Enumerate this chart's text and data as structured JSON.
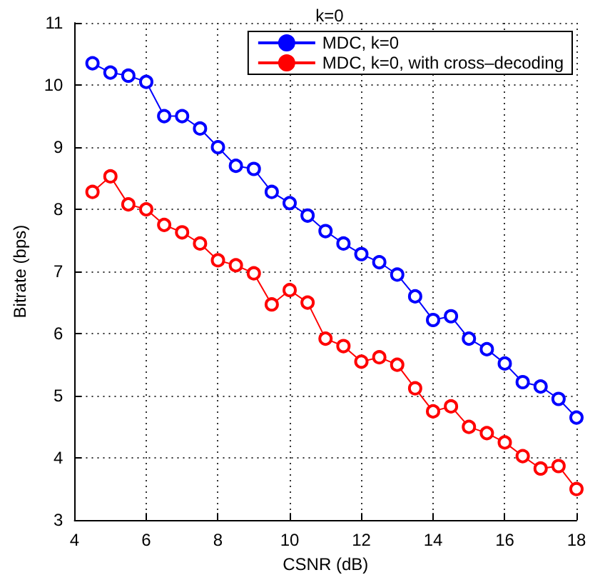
{
  "chart_data": {
    "type": "line",
    "title": "k=0",
    "xlabel": "CSNR (dB)",
    "ylabel": "Bitrate (bps)",
    "x": [
      4.5,
      5,
      5.5,
      6,
      6.5,
      7,
      7.5,
      8,
      8.5,
      9,
      9.5,
      10,
      10.5,
      11,
      11.5,
      12,
      12.5,
      13,
      13.5,
      14,
      14.5,
      15,
      15.5,
      16,
      16.5,
      17,
      17.5,
      18
    ],
    "series": [
      {
        "name": "MDC, k=0",
        "color": "#0000ff",
        "values": [
          10.35,
          10.2,
          10.15,
          10.05,
          9.5,
          9.5,
          9.3,
          9.0,
          8.7,
          8.65,
          8.28,
          8.1,
          7.9,
          7.65,
          7.45,
          7.28,
          7.15,
          6.95,
          6.6,
          6.22,
          6.28,
          5.92,
          5.75,
          5.52,
          5.22,
          5.15,
          4.95,
          4.65
        ]
      },
      {
        "name": "MDC, k=0, with cross–decoding",
        "color": "#ff0000",
        "values": [
          8.28,
          8.53,
          8.08,
          8.0,
          7.75,
          7.63,
          7.45,
          7.18,
          7.1,
          6.97,
          6.47,
          6.7,
          6.5,
          5.92,
          5.8,
          5.55,
          5.62,
          5.5,
          5.12,
          4.75,
          4.83,
          4.5,
          4.4,
          4.25,
          4.03,
          3.83,
          3.87,
          3.5
        ]
      }
    ],
    "xlim": [
      4,
      18
    ],
    "xticks": [
      4,
      6,
      8,
      10,
      12,
      14,
      16,
      18
    ],
    "ylim": [
      3,
      11
    ],
    "yticks": [
      3,
      4,
      5,
      6,
      7,
      8,
      9,
      10,
      11
    ],
    "grid": true,
    "legend": "top right",
    "marker": "circle",
    "line_style": "solid"
  }
}
